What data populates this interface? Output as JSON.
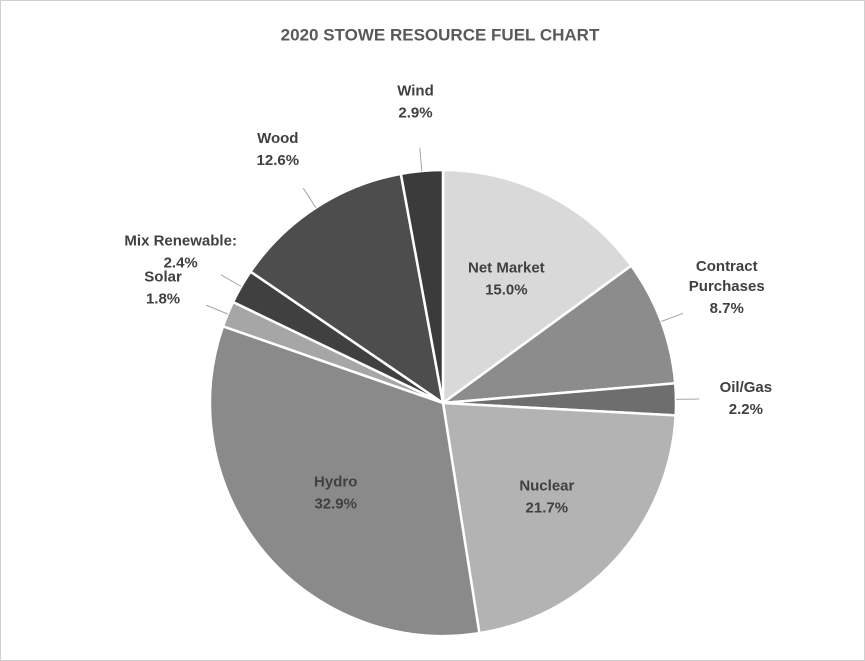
{
  "chart_data": {
    "type": "pie",
    "title": "2020 STOWE RESOURCE FUEL CHART",
    "categories": [
      "Net Market",
      "Contract Purchases",
      "Oil/Gas",
      "Nuclear",
      "Hydro",
      "Solar",
      "Mix Renewable:",
      "Wood",
      "Wind"
    ],
    "values": [
      15.0,
      8.7,
      2.2,
      21.7,
      32.9,
      1.8,
      2.4,
      12.6,
      2.9
    ],
    "value_labels": [
      "15.0%",
      "8.7%",
      "2.2%",
      "21.7%",
      "32.9%",
      "1.8%",
      "2.4%",
      "12.6%",
      "2.9%"
    ],
    "colors": [
      "#d9d9d9",
      "#8c8c8c",
      "#6e6e6e",
      "#b3b3b3",
      "#8a8a8a",
      "#a6a6a6",
      "#404040",
      "#4d4d4d",
      "#3b3b3b"
    ]
  }
}
